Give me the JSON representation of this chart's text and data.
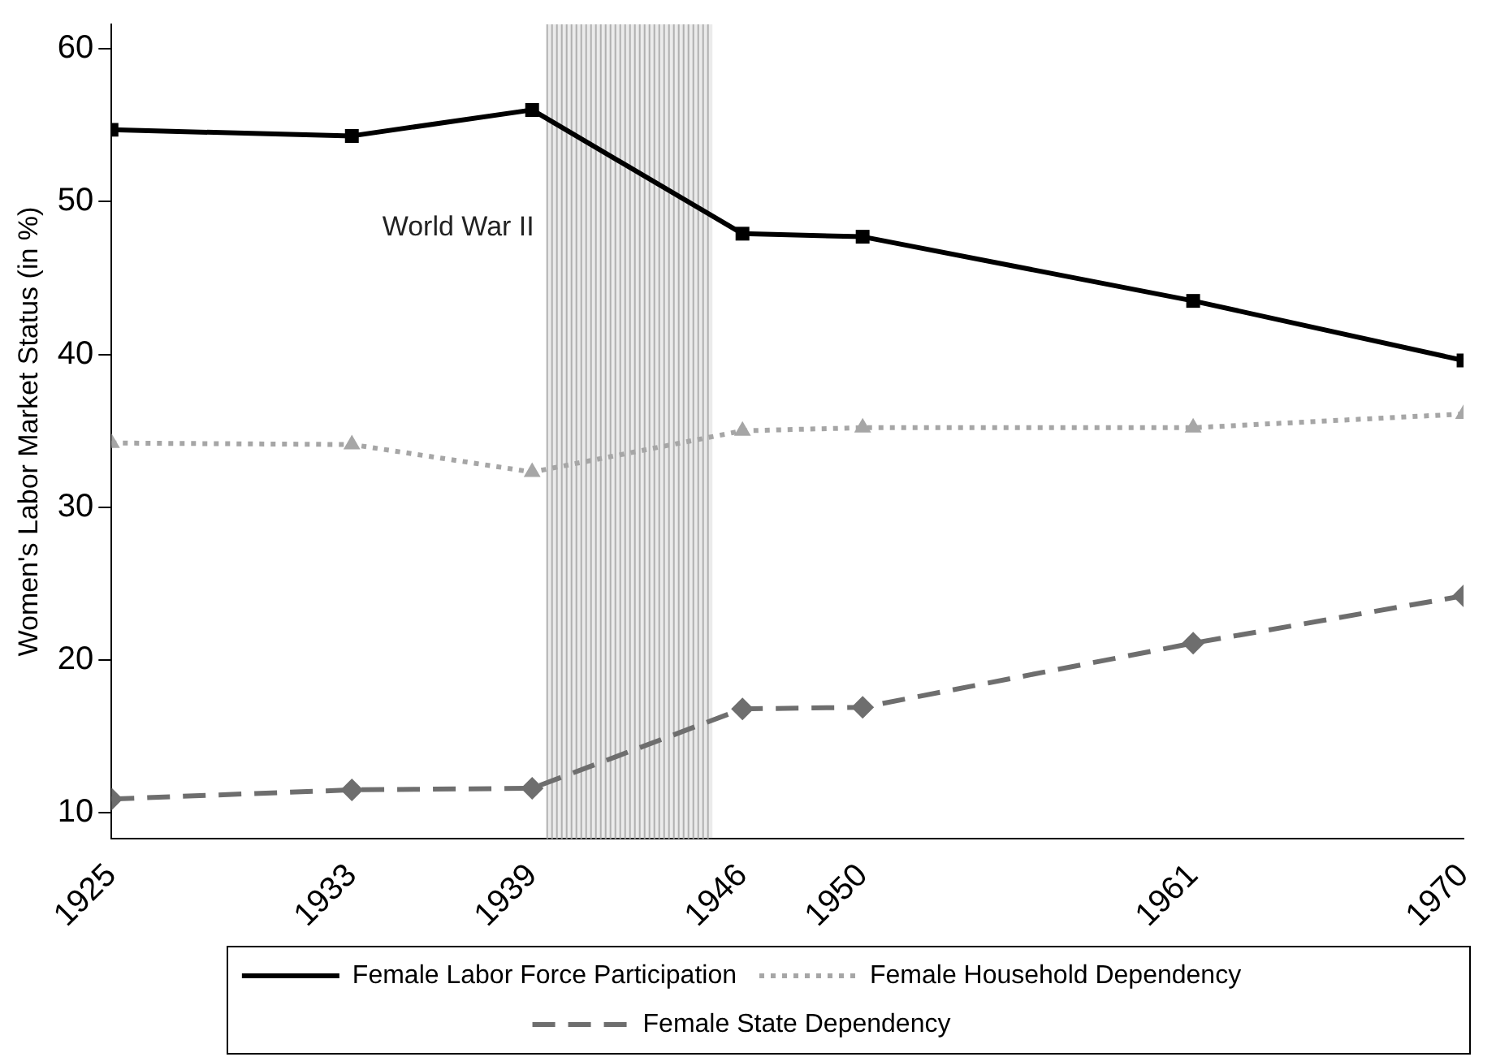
{
  "chart_data": {
    "type": "line",
    "ylabel": "Women's Labor Market Status (in %)",
    "x": [
      1925,
      1933,
      1939,
      1946,
      1950,
      1961,
      1970
    ],
    "series": [
      {
        "name": "Female Labor Force Participation",
        "color": "#000000",
        "marker": "square",
        "line_style": "solid",
        "values": [
          54.7,
          54.3,
          56.0,
          47.9,
          47.7,
          43.5,
          39.6
        ]
      },
      {
        "name": "Female Household Dependency",
        "color": "#a6a6a6",
        "marker": "triangle",
        "line_style": "dotted",
        "values": [
          34.2,
          34.1,
          32.3,
          35.0,
          35.2,
          35.2,
          36.1
        ]
      },
      {
        "name": "Female State Dependency",
        "color": "#6e6e6e",
        "marker": "diamond",
        "line_style": "dashed",
        "values": [
          10.9,
          11.5,
          11.6,
          16.8,
          16.9,
          21.1,
          24.2
        ]
      }
    ],
    "xlim": [
      1925,
      1970
    ],
    "xticks": [
      1925,
      1933,
      1939,
      1946,
      1950,
      1961,
      1970
    ],
    "ylim": [
      8.3,
      61.6
    ],
    "yticks": [
      10,
      20,
      30,
      40,
      50,
      60
    ],
    "bands": [
      {
        "axis": "x",
        "from": 1939.5,
        "to": 1945,
        "label": "World War II",
        "color": "#b0b0b0"
      }
    ],
    "grid": false,
    "legend": "bottom"
  }
}
